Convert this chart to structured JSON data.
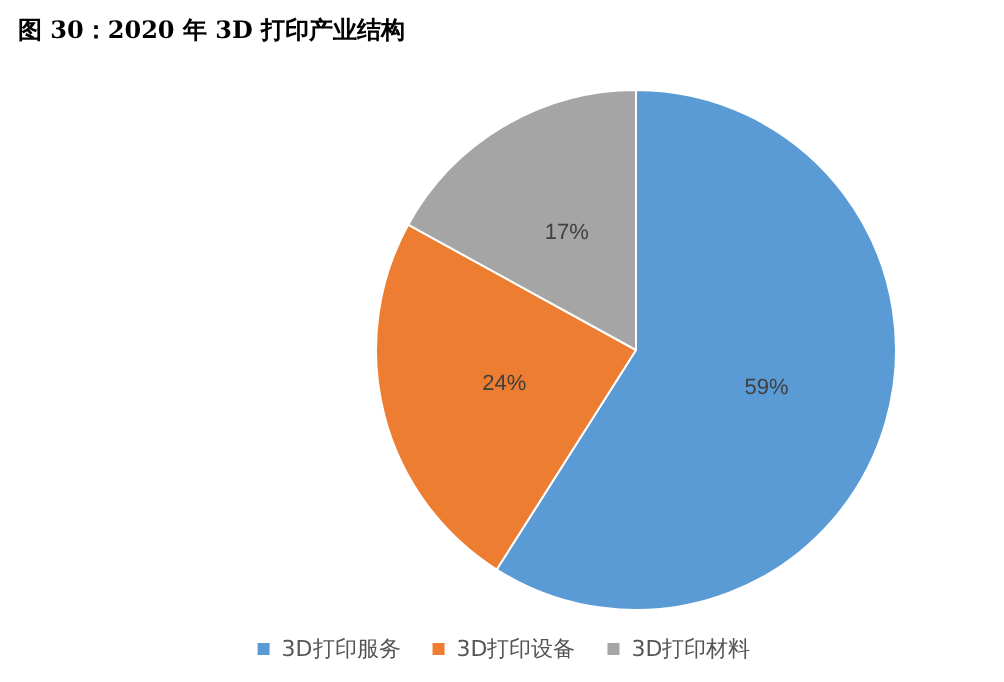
{
  "chart_data": {
    "type": "pie",
    "title": "图 30：2020 年 3D 打印产业结构",
    "categories": [
      "3D打印服务",
      "3D打印设备",
      "3D打印材料"
    ],
    "values": [
      59,
      24,
      17
    ],
    "value_labels": [
      "59%",
      "24%",
      "17%"
    ],
    "colors": [
      "#5b9bd5",
      "#ed7d31",
      "#a5a5a5"
    ],
    "legend": "bottom"
  }
}
